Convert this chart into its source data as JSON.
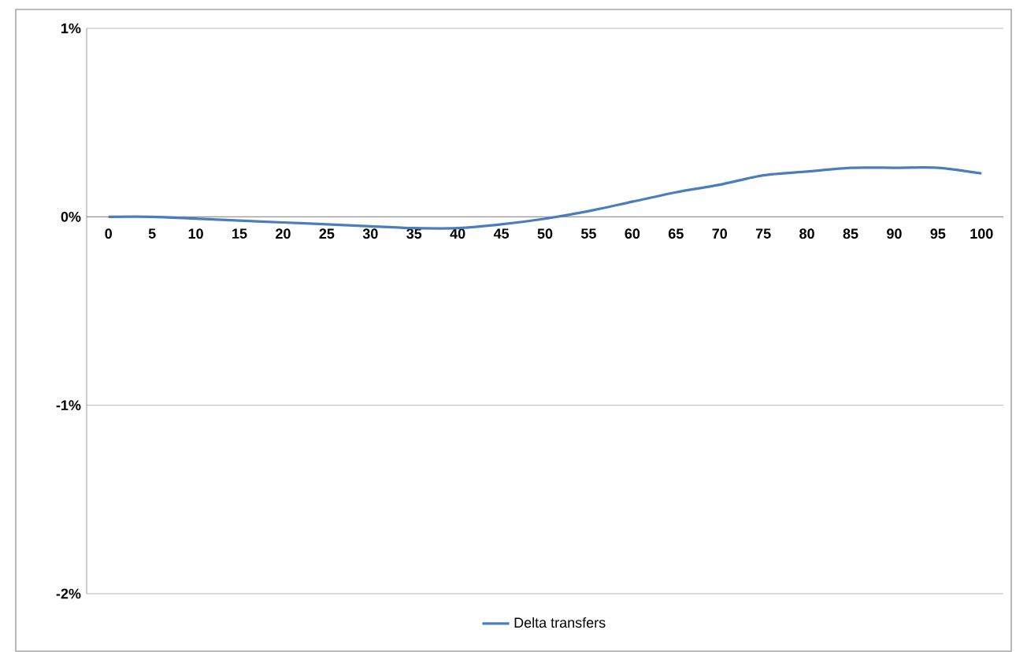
{
  "chart_data": {
    "type": "line",
    "categories": [
      "0",
      "5",
      "10",
      "15",
      "20",
      "25",
      "30",
      "35",
      "40",
      "45",
      "50",
      "55",
      "60",
      "65",
      "70",
      "75",
      "80",
      "85",
      "90",
      "95",
      "100"
    ],
    "series": [
      {
        "name": "Delta transfers",
        "color": "#4a7ebb",
        "values": [
          0,
          0,
          -0.01,
          -0.02,
          -0.03,
          -0.04,
          -0.05,
          -0.06,
          -0.06,
          -0.04,
          -0.01,
          0.03,
          0.08,
          0.13,
          0.17,
          0.22,
          0.24,
          0.26,
          0.26,
          0.26,
          0.23
        ]
      }
    ],
    "ylim": [
      -2,
      1
    ],
    "yticks": [
      {
        "value": -2,
        "label": "-2%"
      },
      {
        "value": -1,
        "label": "-1%"
      },
      {
        "value": 0,
        "label": "0%"
      },
      {
        "value": 1,
        "label": "1%"
      }
    ],
    "grid": "y",
    "legend": "bottom",
    "marker": "none",
    "line_style": "solid"
  }
}
